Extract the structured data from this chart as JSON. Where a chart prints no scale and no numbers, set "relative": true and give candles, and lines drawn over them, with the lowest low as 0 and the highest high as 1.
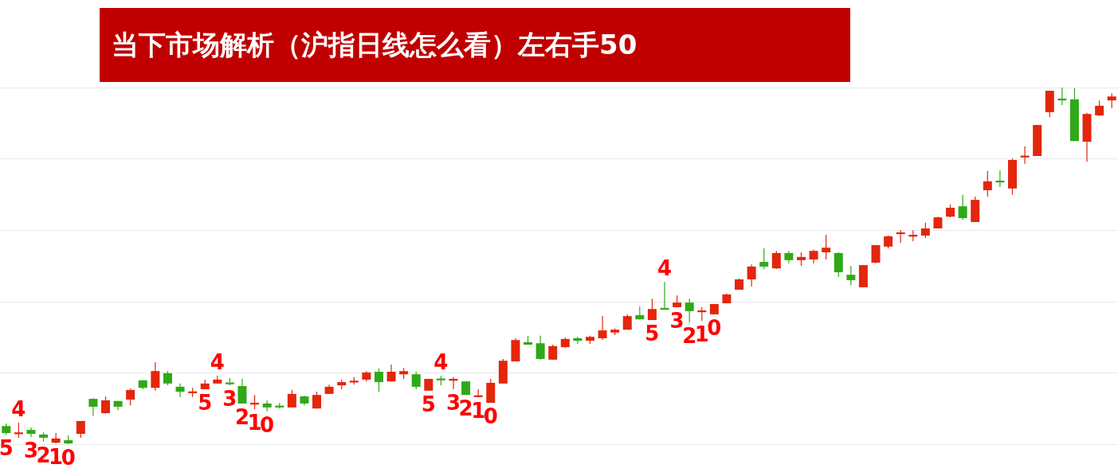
{
  "chart_data": {
    "type": "candlestick",
    "title": "当下市场解析（沪指日线怎么看）左右手50",
    "relative": true,
    "grid": "y",
    "categories": [
      null,
      null,
      null,
      null,
      null,
      null,
      null,
      null,
      null,
      null,
      null,
      null,
      null,
      null,
      null,
      null,
      null,
      null,
      null,
      null,
      null,
      null,
      null,
      null,
      null,
      null,
      null,
      null,
      null,
      null,
      null,
      null,
      null,
      null,
      null,
      null,
      null,
      null,
      null,
      null,
      null,
      null,
      null,
      null,
      null,
      null,
      null,
      null,
      null,
      null,
      null,
      null,
      null,
      null,
      null,
      null,
      null,
      null,
      null,
      null,
      null,
      null,
      null,
      null,
      null,
      null,
      null,
      null,
      null,
      null,
      null,
      null,
      null,
      null,
      null,
      null,
      null,
      null,
      null,
      null,
      null,
      null,
      null,
      null,
      null,
      null,
      null,
      null,
      null,
      null
    ],
    "ohlc": [
      [
        0.051,
        0.058,
        0.027,
        0.031
      ],
      [
        0.028,
        0.06,
        0.018,
        0.033
      ],
      [
        0.04,
        0.047,
        0.02,
        0.029
      ],
      [
        0.027,
        0.033,
        0.007,
        0.018
      ],
      [
        0.004,
        0.031,
        0.002,
        0.016
      ],
      [
        0.011,
        0.025,
        0.0,
        0.002
      ],
      [
        0.029,
        0.065,
        0.018,
        0.065
      ],
      [
        0.127,
        0.129,
        0.08,
        0.105
      ],
      [
        0.087,
        0.134,
        0.085,
        0.123
      ],
      [
        0.121,
        0.121,
        0.096,
        0.105
      ],
      [
        0.125,
        0.156,
        0.109,
        0.152
      ],
      [
        0.179,
        0.179,
        0.154,
        0.158
      ],
      [
        0.158,
        0.23,
        0.15,
        0.205
      ],
      [
        0.199,
        0.205,
        0.165,
        0.17
      ],
      [
        0.161,
        0.17,
        0.132,
        0.147
      ],
      [
        0.143,
        0.158,
        0.132,
        0.148
      ],
      [
        0.154,
        0.181,
        0.154,
        0.17
      ],
      [
        0.17,
        0.192,
        0.17,
        0.181
      ],
      [
        0.173,
        0.185,
        0.165,
        0.168
      ],
      [
        0.163,
        0.183,
        0.114,
        0.114
      ],
      [
        0.111,
        0.138,
        0.098,
        0.116
      ],
      [
        0.114,
        0.123,
        0.092,
        0.103
      ],
      [
        0.108,
        0.116,
        0.1,
        0.103
      ],
      [
        0.103,
        0.152,
        0.103,
        0.141
      ],
      [
        0.134,
        0.136,
        0.109,
        0.114
      ],
      [
        0.1,
        0.147,
        0.1,
        0.138
      ],
      [
        0.141,
        0.167,
        0.141,
        0.161
      ],
      [
        0.165,
        0.181,
        0.154,
        0.174
      ],
      [
        0.173,
        0.188,
        0.167,
        0.178
      ],
      [
        0.181,
        0.205,
        0.176,
        0.201
      ],
      [
        0.203,
        0.212,
        0.147,
        0.174
      ],
      [
        0.176,
        0.223,
        0.176,
        0.203
      ],
      [
        0.196,
        0.214,
        0.183,
        0.205
      ],
      [
        0.196,
        0.203,
        0.154,
        0.161
      ],
      [
        0.15,
        0.183,
        0.15,
        0.183
      ],
      [
        0.184,
        0.192,
        0.165,
        0.179
      ],
      [
        0.178,
        0.188,
        0.154,
        0.183
      ],
      [
        0.176,
        0.176,
        0.138,
        0.138
      ],
      [
        0.132,
        0.154,
        0.132,
        0.137
      ],
      [
        0.116,
        0.183,
        0.116,
        0.172
      ],
      [
        0.17,
        0.239,
        0.17,
        0.234
      ],
      [
        0.232,
        0.297,
        0.232,
        0.292
      ],
      [
        0.286,
        0.304,
        0.279,
        0.279
      ],
      [
        0.283,
        0.304,
        0.237,
        0.239
      ],
      [
        0.237,
        0.279,
        0.237,
        0.275
      ],
      [
        0.272,
        0.299,
        0.27,
        0.295
      ],
      [
        0.297,
        0.301,
        0.281,
        0.29
      ],
      [
        0.29,
        0.304,
        0.281,
        0.301
      ],
      [
        0.297,
        0.359,
        0.292,
        0.319
      ],
      [
        0.313,
        0.324,
        0.306,
        0.321
      ],
      [
        0.321,
        0.364,
        0.321,
        0.359
      ],
      [
        0.362,
        0.386,
        0.35,
        0.35
      ],
      [
        0.348,
        0.408,
        0.348,
        0.379
      ],
      [
        0.382,
        0.455,
        0.377,
        0.377
      ],
      [
        0.384,
        0.417,
        0.384,
        0.397
      ],
      [
        0.397,
        0.408,
        0.342,
        0.373
      ],
      [
        0.37,
        0.384,
        0.346,
        0.375
      ],
      [
        0.364,
        0.393,
        0.364,
        0.393
      ],
      [
        0.395,
        0.422,
        0.395,
        0.42
      ],
      [
        0.433,
        0.464,
        0.433,
        0.462
      ],
      [
        0.462,
        0.504,
        0.442,
        0.498
      ],
      [
        0.511,
        0.549,
        0.491,
        0.498
      ],
      [
        0.493,
        0.542,
        0.491,
        0.536
      ],
      [
        0.536,
        0.542,
        0.507,
        0.516
      ],
      [
        0.516,
        0.538,
        0.5,
        0.525
      ],
      [
        0.518,
        0.545,
        0.507,
        0.542
      ],
      [
        0.538,
        0.587,
        0.518,
        0.551
      ],
      [
        0.536,
        0.538,
        0.469,
        0.482
      ],
      [
        0.475,
        0.5,
        0.446,
        0.46
      ],
      [
        0.44,
        0.502,
        0.44,
        0.502
      ],
      [
        0.509,
        0.558,
        0.507,
        0.558
      ],
      [
        0.554,
        0.585,
        0.549,
        0.583
      ],
      [
        0.589,
        0.6,
        0.565,
        0.594
      ],
      [
        0.582,
        0.6,
        0.569,
        0.587
      ],
      [
        0.585,
        0.621,
        0.578,
        0.605
      ],
      [
        0.605,
        0.638,
        0.605,
        0.636
      ],
      [
        0.638,
        0.672,
        0.636,
        0.663
      ],
      [
        0.667,
        0.699,
        0.629,
        0.634
      ],
      [
        0.623,
        0.694,
        0.623,
        0.685
      ],
      [
        0.712,
        0.766,
        0.694,
        0.737
      ],
      [
        0.739,
        0.768,
        0.721,
        0.734
      ],
      [
        0.717,
        0.801,
        0.699,
        0.797
      ],
      [
        0.804,
        0.835,
        0.786,
        0.809
      ],
      [
        0.808,
        0.895,
        0.808,
        0.895
      ],
      [
        0.931,
        0.991,
        0.917,
        0.991
      ],
      [
        0.969,
        1.0,
        0.951,
        0.964
      ],
      [
        0.967,
        0.998,
        0.85,
        0.85
      ],
      [
        0.848,
        0.929,
        0.792,
        0.926
      ],
      [
        0.922,
        0.964,
        0.92,
        0.949
      ],
      [
        0.964,
        0.984,
        0.942,
        0.975
      ]
    ],
    "colors": [
      "#2fa917",
      "#e3260c",
      "#2fa917",
      "#2fa917",
      "#e3260c",
      "#2fa917",
      "#e3260c",
      "#2fa917",
      "#e3260c",
      "#2fa917",
      "#e3260c",
      "#2fa917",
      "#e3260c",
      "#2fa917",
      "#2fa917",
      "#e3260c",
      "#e3260c",
      "#e3260c",
      "#2fa917",
      "#2fa917",
      "#e3260c",
      "#2fa917",
      "#2fa917",
      "#e3260c",
      "#2fa917",
      "#e3260c",
      "#e3260c",
      "#e3260c",
      "#e3260c",
      "#e3260c",
      "#2fa917",
      "#e3260c",
      "#e3260c",
      "#2fa917",
      "#e3260c",
      "#2fa917",
      "#e3260c",
      "#2fa917",
      "#e3260c",
      "#e3260c",
      "#e3260c",
      "#e3260c",
      "#2fa917",
      "#2fa917",
      "#e3260c",
      "#e3260c",
      "#2fa917",
      "#e3260c",
      "#e3260c",
      "#e3260c",
      "#e3260c",
      "#2fa917",
      "#e3260c",
      "#2fa917",
      "#e3260c",
      "#2fa917",
      "#e3260c",
      "#e3260c",
      "#e3260c",
      "#e3260c",
      "#e3260c",
      "#2fa917",
      "#e3260c",
      "#2fa917",
      "#e3260c",
      "#e3260c",
      "#e3260c",
      "#2fa917",
      "#2fa917",
      "#e3260c",
      "#e3260c",
      "#e3260c",
      "#e3260c",
      "#e3260c",
      "#e3260c",
      "#e3260c",
      "#e3260c",
      "#2fa917",
      "#e3260c",
      "#e3260c",
      "#2fa917",
      "#e3260c",
      "#e3260c",
      "#e3260c",
      "#e3260c",
      "#2fa917",
      "#2fa917",
      "#e3260c",
      "#e3260c",
      "#e3260c"
    ],
    "value_labels": [
      "5",
      "4",
      "3",
      "2",
      "1",
      "0",
      null,
      null,
      null,
      null,
      null,
      null,
      null,
      null,
      null,
      null,
      "5",
      "4",
      "3",
      "2",
      "1",
      "0",
      null,
      null,
      null,
      null,
      null,
      null,
      null,
      null,
      null,
      null,
      null,
      null,
      "5",
      "4",
      "3",
      "2",
      "1",
      "0",
      null,
      null,
      null,
      null,
      null,
      null,
      null,
      null,
      null,
      null,
      null,
      null,
      "5",
      "4",
      "3",
      "2",
      "1",
      "0",
      null,
      null,
      null,
      null,
      null,
      null,
      null,
      null,
      null,
      null,
      null,
      null,
      null,
      null,
      null,
      null,
      null,
      null,
      null,
      null,
      null,
      null,
      null,
      null,
      null,
      null,
      null,
      null,
      null,
      null,
      null,
      null
    ]
  }
}
